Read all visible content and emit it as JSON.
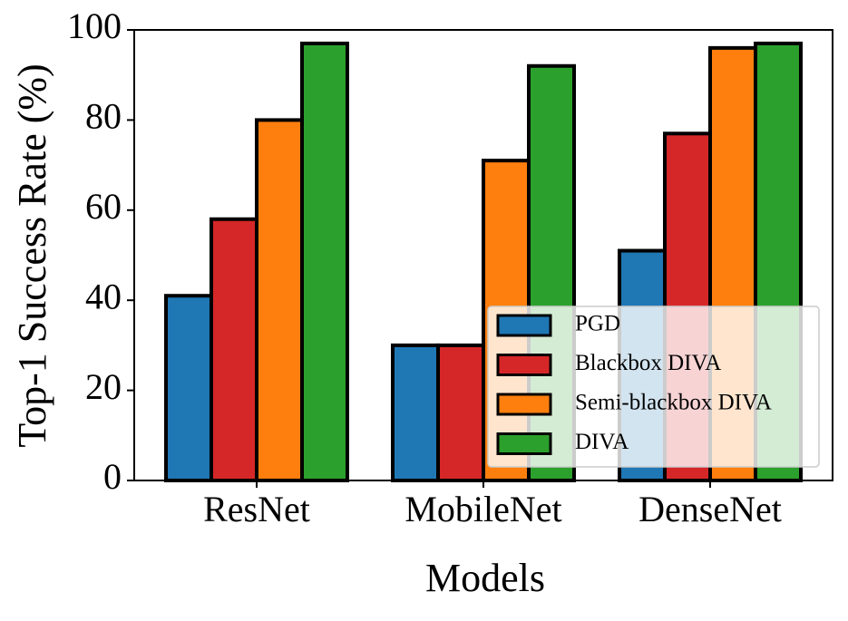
{
  "chart_data": {
    "type": "bar",
    "x_label": "Models",
    "y_label": "Top-1 Success Rate (%)",
    "categories": [
      "ResNet",
      "MobileNet",
      "DenseNet"
    ],
    "series": [
      {
        "name": "PGD",
        "color": "#1f77b4",
        "values": [
          41,
          30,
          51
        ]
      },
      {
        "name": "Blackbox DIVA",
        "color": "#d62728",
        "values": [
          58,
          30,
          77
        ]
      },
      {
        "name": "Semi-blackbox DIVA",
        "color": "#ff7f0e",
        "values": [
          80,
          71,
          96
        ]
      },
      {
        "name": "DIVA",
        "color": "#2ca02c",
        "values": [
          97,
          92,
          97
        ]
      }
    ],
    "ylim": [
      0,
      100
    ],
    "yticks": [
      0,
      20,
      40,
      60,
      80,
      100
    ],
    "legend": "lower right"
  }
}
